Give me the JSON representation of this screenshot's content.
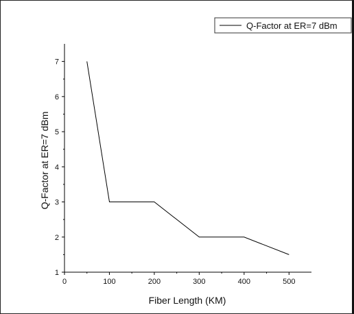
{
  "chart_data": {
    "type": "line",
    "title": "",
    "xlabel": "Fiber Length (KM)",
    "ylabel": "Q-Factor at ER=7 dBm",
    "xlim": [
      0,
      550
    ],
    "ylim": [
      1,
      7.5
    ],
    "xticks": [
      0,
      100,
      200,
      300,
      400,
      500
    ],
    "yticks": [
      1,
      2,
      3,
      4,
      5,
      6,
      7
    ],
    "grid": false,
    "legend_position": "top-right",
    "series": [
      {
        "name": "Q-Factor at ER=7 dBm",
        "color": "#000000",
        "x": [
          50,
          100,
          200,
          300,
          400,
          500
        ],
        "y": [
          7,
          3,
          3,
          2,
          2,
          1.5
        ]
      }
    ]
  }
}
